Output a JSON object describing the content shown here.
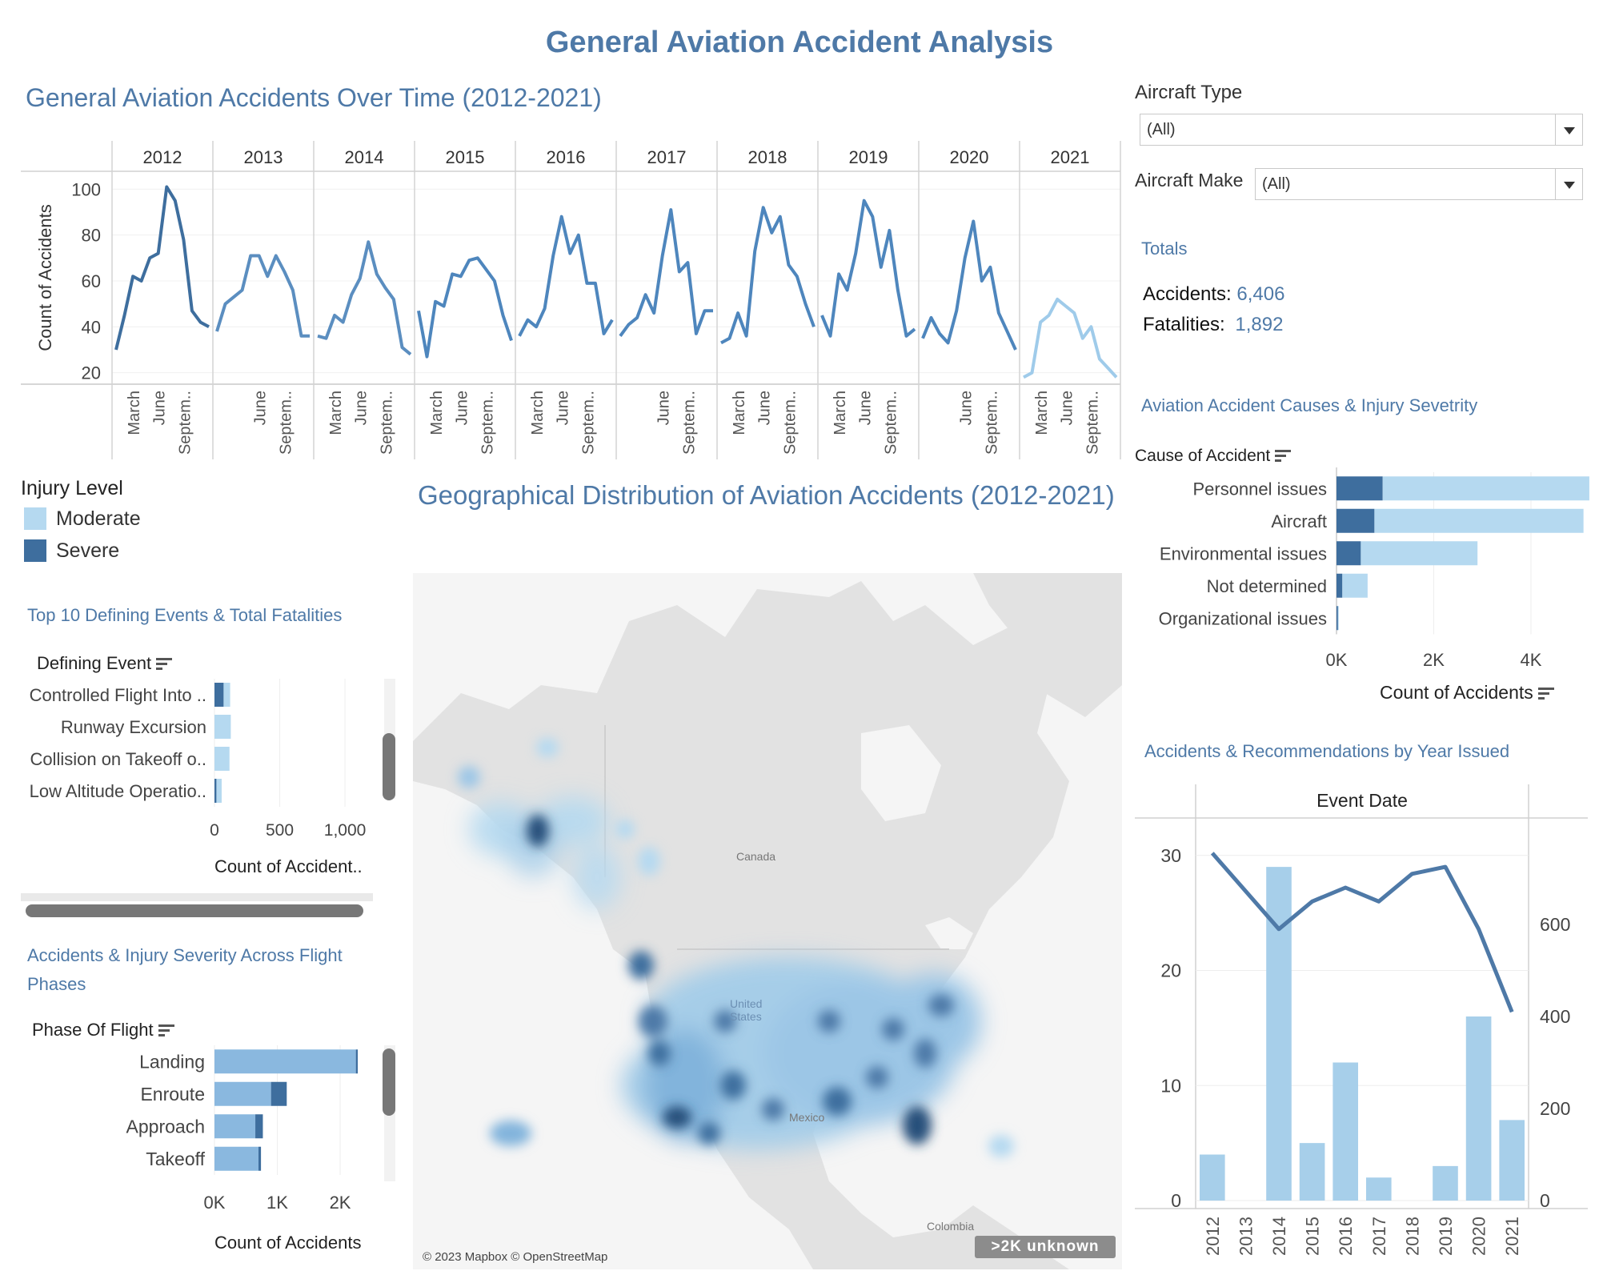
{
  "dashboard_title": "General Aviation Accident Analysis",
  "colors": {
    "title_blue": "#4e79a7",
    "moderate": "#b5d9f0",
    "severe": "#3e6e9e",
    "line_blue": "#4e79a7"
  },
  "filters": {
    "aircraft_type_label": "Aircraft Type",
    "aircraft_type_value": "(All)",
    "aircraft_make_label": "Aircraft Make",
    "aircraft_make_value": "(All)",
    "dropdown_icon": "chevron-down-icon"
  },
  "totals": {
    "title": "Totals",
    "accidents_label": "Accidents:",
    "accidents_value": "6,406",
    "fatalities_label": "Fatalities:",
    "fatalities_value": "1,892"
  },
  "legend": {
    "title": "Injury Level",
    "items": [
      {
        "label": "Moderate",
        "color": "#b5d9f0"
      },
      {
        "label": "Severe",
        "color": "#3e6e9e"
      }
    ]
  },
  "map": {
    "title": "Geographical Distribution of Aviation Accidents (2012-2021)",
    "labels": {
      "canada": "Canada",
      "united_states": "United States",
      "mexico": "Mexico",
      "colombia": "Colombia"
    },
    "attribution": "© 2023 Mapbox © OpenStreetMap",
    "unknown_badge": ">2K unknown"
  },
  "chart_data": [
    {
      "id": "time_series",
      "type": "line",
      "title": "General Aviation Accidents Over Time (2012-2021)",
      "ylabel": "Count of Accidents",
      "ylim": [
        15,
        105
      ],
      "yticks": [
        "20",
        "40",
        "60",
        "80",
        "100"
      ],
      "month_tick_labels": [
        "March",
        "June",
        "Septem.."
      ],
      "panels": [
        {
          "year": "2012",
          "values": [
            30,
            45,
            62,
            60,
            70,
            72,
            101,
            95,
            78,
            47,
            42,
            40
          ],
          "month_labels": [
            "March",
            "June",
            "Septem.."
          ]
        },
        {
          "year": "2013",
          "values": [
            38,
            50,
            53,
            56,
            71,
            71,
            62,
            71,
            64,
            56,
            36,
            36
          ],
          "month_labels": [
            "",
            "June",
            "Septem.."
          ]
        },
        {
          "year": "2014",
          "values": [
            36,
            35,
            45,
            42,
            54,
            61,
            77,
            63,
            57,
            52,
            31,
            28
          ],
          "month_labels": [
            "March",
            "June",
            "Septem.."
          ]
        },
        {
          "year": "2015",
          "values": [
            47,
            27,
            51,
            49,
            63,
            62,
            69,
            70,
            65,
            60,
            45,
            34
          ],
          "month_labels": [
            "March",
            "June",
            "Septem.."
          ]
        },
        {
          "year": "2016",
          "values": [
            36,
            43,
            40,
            48,
            71,
            88,
            72,
            80,
            59,
            59,
            37,
            43
          ],
          "month_labels": [
            "March",
            "June",
            "Septem.."
          ]
        },
        {
          "year": "2017",
          "values": [
            36,
            41,
            44,
            54,
            46,
            71,
            91,
            64,
            68,
            37,
            47,
            47
          ],
          "month_labels": [
            "",
            "June",
            "Septem.."
          ]
        },
        {
          "year": "2018",
          "values": [
            33,
            35,
            46,
            36,
            73,
            92,
            81,
            88,
            67,
            62,
            50,
            40
          ],
          "month_labels": [
            "March",
            "June",
            "Septem.."
          ]
        },
        {
          "year": "2019",
          "values": [
            45,
            36,
            63,
            56,
            72,
            95,
            88,
            66,
            82,
            56,
            36,
            39
          ],
          "month_labels": [
            "March",
            "June",
            "Septem.."
          ]
        },
        {
          "year": "2020",
          "values": [
            35,
            44,
            37,
            33,
            47,
            70,
            86,
            60,
            66,
            46,
            38,
            30
          ],
          "month_labels": [
            "",
            "June",
            "Septem.."
          ]
        },
        {
          "year": "2021",
          "values": [
            18,
            20,
            42,
            45,
            52,
            49,
            46,
            35,
            40,
            26,
            22,
            18
          ],
          "month_labels": [
            "March",
            "June",
            "Septem.."
          ]
        }
      ]
    },
    {
      "id": "causes",
      "type": "bar",
      "orientation": "horizontal",
      "stacked": true,
      "title": "Aviation Accident Causes & Injury Sevetrity",
      "axis_header": "Cause of Accident",
      "xlabel": "Count of Accidents",
      "xlim": [
        0,
        5300
      ],
      "xticks": [
        {
          "value": 0,
          "label": "0K"
        },
        {
          "value": 2000,
          "label": "2K"
        },
        {
          "value": 4000,
          "label": "4K"
        }
      ],
      "categories": [
        "Personnel issues",
        "Aircraft",
        "Environmental issues",
        "Not determined",
        "Organizational issues"
      ],
      "series": [
        {
          "name": "Severe",
          "values": [
            950,
            780,
            500,
            120,
            30
          ]
        },
        {
          "name": "Moderate",
          "values": [
            4250,
            4300,
            2400,
            520,
            10
          ]
        }
      ]
    },
    {
      "id": "defining_events",
      "type": "bar",
      "orientation": "horizontal",
      "stacked": true,
      "title": "Top 10 Defining Events & Total Fatalities",
      "axis_header": "Defining Event",
      "xlabel": "Count of Accident..",
      "xlim": [
        0,
        1300
      ],
      "xticks": [
        {
          "value": 0,
          "label": "0"
        },
        {
          "value": 500,
          "label": "500"
        },
        {
          "value": 1000,
          "label": "1,000"
        }
      ],
      "categories": [
        "Controlled Flight Into ..",
        "Runway Excursion",
        "Collision on Takeoff o..",
        "Low Altitude Operatio.."
      ],
      "series": [
        {
          "name": "Severe",
          "values": [
            70,
            0,
            0,
            15
          ]
        },
        {
          "name": "Moderate",
          "values": [
            50,
            125,
            115,
            40
          ]
        }
      ]
    },
    {
      "id": "flight_phases",
      "type": "bar",
      "orientation": "horizontal",
      "stacked": true,
      "title": "Accidents & Injury Severity Across Flight Phases",
      "axis_header": "Phase Of Flight",
      "xlabel": "Count of Accidents",
      "xlim": [
        0,
        2700
      ],
      "xticks": [
        {
          "value": 0,
          "label": "0K"
        },
        {
          "value": 1000,
          "label": "1K"
        },
        {
          "value": 2000,
          "label": "2K"
        }
      ],
      "categories": [
        "Landing",
        "Enroute",
        "Approach",
        "Takeoff"
      ],
      "series": [
        {
          "name": "Moderate",
          "values": [
            2250,
            900,
            650,
            700
          ]
        },
        {
          "name": "Severe",
          "values": [
            30,
            250,
            120,
            40
          ]
        }
      ]
    },
    {
      "id": "recommendations",
      "type": "bar",
      "title": "Accidents & Recommendations by Year Issued",
      "header": "Event Date",
      "categories": [
        "2012",
        "2013",
        "2014",
        "2015",
        "2016",
        "2017",
        "2018",
        "2019",
        "2020",
        "2021"
      ],
      "bar_values": [
        4,
        0,
        29,
        5,
        12,
        2,
        0,
        3,
        16,
        7
      ],
      "bar_ylim": [
        0,
        32
      ],
      "bar_yticks": [
        0,
        10,
        20,
        30
      ],
      "line_values": [
        755,
        0,
        590,
        650,
        680,
        650,
        710,
        725,
        590,
        410
      ],
      "line_has_value": [
        true,
        false,
        true,
        true,
        true,
        true,
        true,
        true,
        true,
        true
      ],
      "line_ylim": [
        0,
        800
      ],
      "line_yticks": [
        0,
        200,
        400,
        600
      ]
    }
  ]
}
